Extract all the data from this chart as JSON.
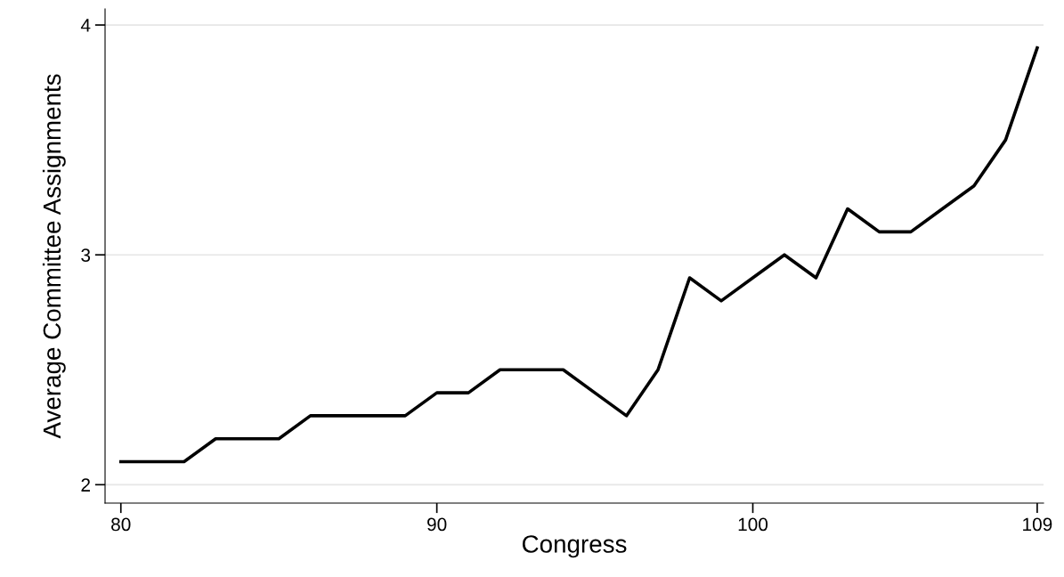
{
  "chart_data": {
    "type": "line",
    "xlabel": "Congress",
    "ylabel": "Average Committee Assignments",
    "x": [
      80,
      81,
      82,
      83,
      84,
      85,
      86,
      87,
      88,
      89,
      90,
      91,
      92,
      93,
      94,
      95,
      96,
      97,
      98,
      99,
      100,
      101,
      102,
      103,
      104,
      105,
      106,
      107,
      108,
      109
    ],
    "series": [
      {
        "color": "#000000",
        "values": [
          2.1,
          2.1,
          2.1,
          2.2,
          2.2,
          2.2,
          2.3,
          2.3,
          2.3,
          2.3,
          2.4,
          2.4,
          2.5,
          2.5,
          2.5,
          2.4,
          2.3,
          2.5,
          2.9,
          2.8,
          2.9,
          3.0,
          2.9,
          3.2,
          3.1,
          3.1,
          3.2,
          3.3,
          3.5,
          3.9
        ]
      }
    ],
    "xlim": [
      79.5,
      109.2
    ],
    "ylim": [
      1.92,
      4.07
    ],
    "xticks": [
      80,
      90,
      100,
      109
    ],
    "yticks": [
      2,
      3,
      4
    ],
    "grid": "y",
    "legend": false,
    "marker": "none",
    "line_style": "solid"
  }
}
